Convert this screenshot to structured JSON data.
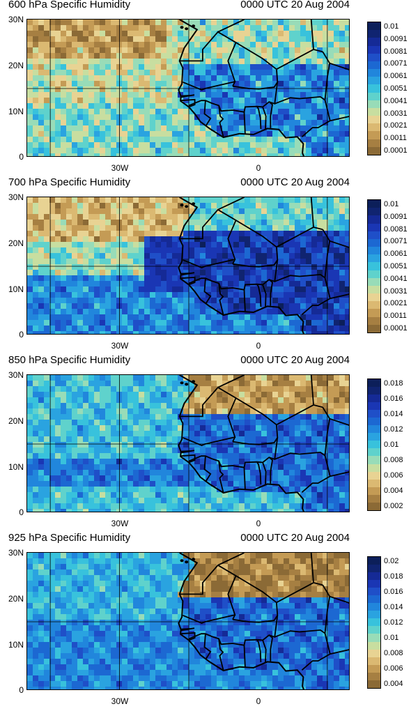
{
  "panels": [
    {
      "title": "600 hPa Specific Humidity",
      "time": "0000 UTC 20 Aug 2004",
      "palette": [
        "#8b6a36",
        "#a67f42",
        "#c49b55",
        "#dbb972",
        "#e8d393",
        "#c8dea0",
        "#98dcb8",
        "#5fd2cc",
        "#38c2dc",
        "#2aa3e0",
        "#2186dc",
        "#1c68d2",
        "#1f4fc8",
        "#1a36b4",
        "#152a96",
        "#102470",
        "#0c1f5a"
      ],
      "legend_labels": [
        "0.01",
        "0.0091",
        "0.0081",
        "0.0071",
        "0.0061",
        "0.0051",
        "0.0041",
        "0.0031",
        "0.0021",
        "0.0011",
        "0.0001"
      ]
    },
    {
      "title": "700 hPa Specific Humidity",
      "time": "0000 UTC 20 Aug 2004",
      "palette": [
        "#8b6a36",
        "#a67f42",
        "#c49b55",
        "#dbb972",
        "#e8d393",
        "#c8dea0",
        "#98dcb8",
        "#5fd2cc",
        "#38c2dc",
        "#2aa3e0",
        "#2186dc",
        "#1c68d2",
        "#1f4fc8",
        "#1a36b4",
        "#152a96",
        "#102470",
        "#0c1f5a"
      ],
      "legend_labels": [
        "0.01",
        "0.0091",
        "0.0081",
        "0.0071",
        "0.0061",
        "0.0051",
        "0.0041",
        "0.0031",
        "0.0021",
        "0.0011",
        "0.0001"
      ]
    },
    {
      "title": "850 hPa Specific Humidity",
      "time": "0000 UTC 20 Aug 2004",
      "palette": [
        "#8b6a36",
        "#a67f42",
        "#c49b55",
        "#dbb972",
        "#e8d393",
        "#c8dea0",
        "#98dcb8",
        "#5fd2cc",
        "#38c2dc",
        "#2aa3e0",
        "#2186dc",
        "#1c68d2",
        "#1f4fc8",
        "#1a36b4",
        "#152a96",
        "#102470",
        "#0c1f5a"
      ],
      "legend_labels": [
        "0.018",
        "0.016",
        "0.014",
        "0.012",
        "0.01",
        "0.008",
        "0.006",
        "0.004",
        "0.002"
      ]
    },
    {
      "title": "925 hPa Specific Humidity",
      "time": "0000 UTC 20 Aug 2004",
      "palette": [
        "#8b6a36",
        "#a67f42",
        "#c49b55",
        "#dbb972",
        "#e8d393",
        "#c8dea0",
        "#98dcb8",
        "#5fd2cc",
        "#38c2dc",
        "#2aa3e0",
        "#2186dc",
        "#1c68d2",
        "#1f4fc8",
        "#1a36b4",
        "#152a96",
        "#102470",
        "#0c1f5a"
      ],
      "legend_labels": [
        "0.02",
        "0.018",
        "0.016",
        "0.014",
        "0.012",
        "0.01",
        "0.008",
        "0.006",
        "0.004"
      ]
    }
  ],
  "axes": {
    "y_labels": [
      "30N",
      "20N",
      "10N",
      "0"
    ],
    "x_labels": [
      "30W",
      "0"
    ]
  }
}
